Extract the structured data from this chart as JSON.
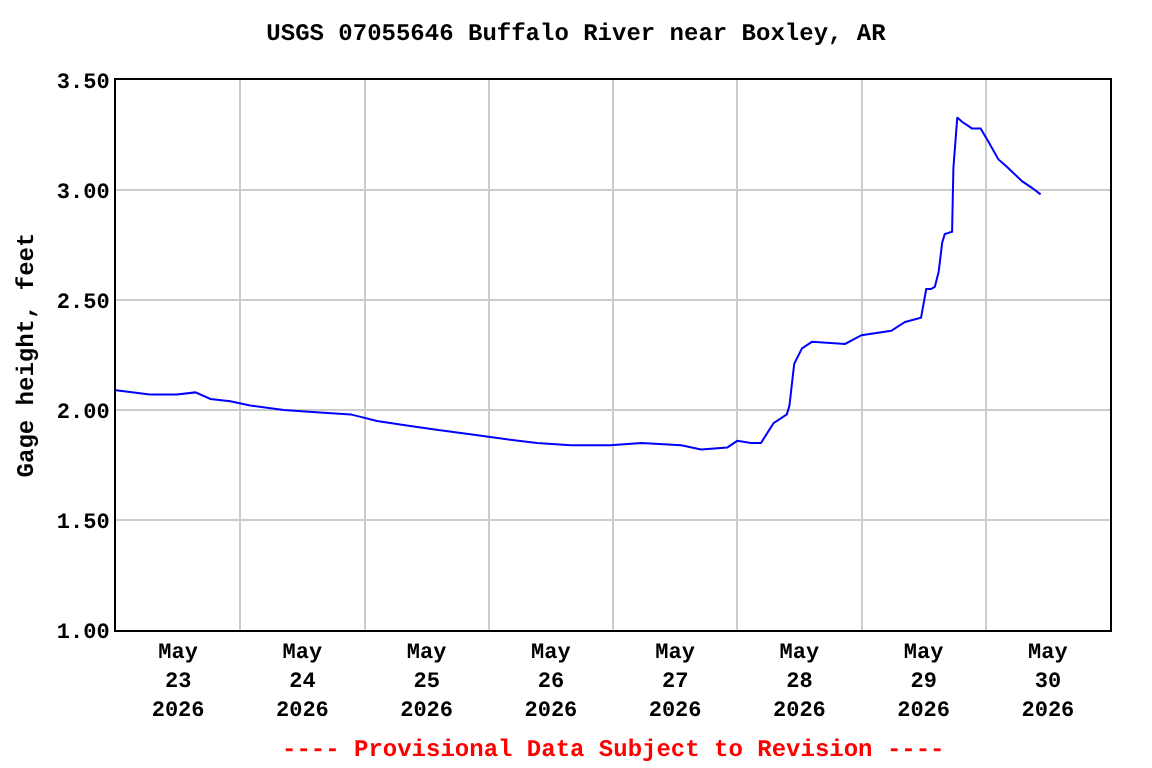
{
  "chart_data": {
    "type": "line",
    "title": "USGS 07055646 Buffalo River near Boxley, AR",
    "ylabel": "Gage height, feet",
    "annotations": [
      "---- Provisional Data Subject to Revision ----"
    ],
    "x": [
      "2026-05-23T00:00",
      "2026-05-23T06:30",
      "2026-05-23T11:45",
      "2026-05-23T15:20",
      "2026-05-23T18:15",
      "2026-05-23T22:05",
      "2026-05-24T01:55",
      "2026-05-24T08:25",
      "2026-05-24T14:40",
      "2026-05-24T21:20",
      "2026-05-25T02:25",
      "2026-05-25T08:10",
      "2026-05-25T13:55",
      "2026-05-25T20:25",
      "2026-05-26T02:25",
      "2026-05-26T09:20",
      "2026-05-26T15:50",
      "2026-05-26T23:30",
      "2026-05-27T05:30",
      "2026-05-27T13:10",
      "2026-05-27T17:00",
      "2026-05-27T22:05",
      "2026-05-28T00:00",
      "2026-05-28T02:40",
      "2026-05-28T04:35",
      "2026-05-28T07:00",
      "2026-05-28T09:35",
      "2026-05-28T10:05",
      "2026-05-28T11:00",
      "2026-05-28T12:30",
      "2026-05-28T14:25",
      "2026-05-28T20:50",
      "2026-05-29T00:00",
      "2026-05-29T05:45",
      "2026-05-29T08:25",
      "2026-05-29T11:30",
      "2026-05-29T12:30",
      "2026-05-29T13:25",
      "2026-05-29T14:10",
      "2026-05-29T14:55",
      "2026-05-29T15:35",
      "2026-05-29T16:05",
      "2026-05-29T17:30",
      "2026-05-29T17:45",
      "2026-05-29T18:30",
      "2026-05-29T19:25",
      "2026-05-29T21:20",
      "2026-05-29T23:00",
      "2026-05-30T00:30",
      "2026-05-30T02:25",
      "2026-05-30T04:20",
      "2026-05-30T07:00",
      "2026-05-30T08:55",
      "2026-05-30T10:35"
    ],
    "series": [
      {
        "color": "#0000ff",
        "values": [
          2.09,
          2.07,
          2.07,
          2.08,
          2.05,
          2.04,
          2.02,
          2.0,
          1.99,
          1.98,
          1.95,
          1.93,
          1.91,
          1.89,
          1.87,
          1.85,
          1.84,
          1.84,
          1.85,
          1.84,
          1.82,
          1.83,
          1.86,
          1.85,
          1.85,
          1.94,
          1.98,
          2.02,
          2.21,
          2.28,
          2.31,
          2.3,
          2.34,
          2.36,
          2.4,
          2.42,
          2.55,
          2.55,
          2.56,
          2.63,
          2.76,
          2.8,
          2.81,
          3.1,
          3.33,
          3.31,
          3.28,
          3.28,
          3.22,
          3.14,
          3.1,
          3.04,
          3.01,
          2.98
        ]
      }
    ],
    "xlim": [
      "2026-05-23T00:00",
      "2026-05-31T00:00"
    ],
    "xticks": [
      {
        "value": "2026-05-23T12:00",
        "label": "May\n23\n2026"
      },
      {
        "value": "2026-05-24T12:00",
        "label": "May\n24\n2026"
      },
      {
        "value": "2026-05-25T12:00",
        "label": "May\n25\n2026"
      },
      {
        "value": "2026-05-26T12:00",
        "label": "May\n26\n2026"
      },
      {
        "value": "2026-05-27T12:00",
        "label": "May\n27\n2026"
      },
      {
        "value": "2026-05-28T12:00",
        "label": "May\n28\n2026"
      },
      {
        "value": "2026-05-29T12:00",
        "label": "May\n29\n2026"
      },
      {
        "value": "2026-05-30T12:00",
        "label": "May\n30\n2026"
      },
      {
        "value": "2026-05-24T00:00",
        "label": null
      },
      {
        "value": "2026-05-25T00:00",
        "label": null
      },
      {
        "value": "2026-05-26T00:00",
        "label": null
      },
      {
        "value": "2026-05-27T00:00",
        "label": null
      },
      {
        "value": "2026-05-28T00:00",
        "label": null
      },
      {
        "value": "2026-05-29T00:00",
        "label": null
      },
      {
        "value": "2026-05-30T00:00",
        "label": null
      }
    ],
    "ylim": [
      1.0,
      3.5
    ],
    "yticks": [
      {
        "value": 1.0,
        "label": "1.00"
      },
      {
        "value": 1.5,
        "label": "1.50"
      },
      {
        "value": 2.0,
        "label": "2.00"
      },
      {
        "value": 2.5,
        "label": "2.50"
      },
      {
        "value": 3.0,
        "label": "3.00"
      },
      {
        "value": 3.5,
        "label": "3.50"
      }
    ],
    "grid": true,
    "line_style": "solid",
    "marker": "none"
  }
}
